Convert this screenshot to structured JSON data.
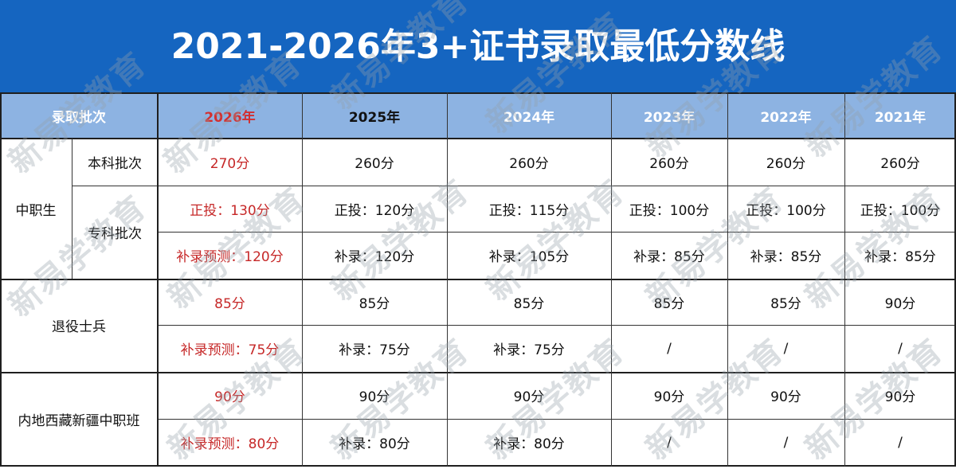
{
  "title": "2021-2026年3+证书录取最低分数线",
  "watermark": "新易学教育",
  "colors": {
    "banner": "#1565c0",
    "header": "#8db3e2",
    "highlight": "#c62828"
  },
  "table": {
    "corner": "录取批次",
    "years": [
      "2026年",
      "2025年",
      "2024年",
      "2023年",
      "2022年",
      "2021年"
    ],
    "groups": [
      {
        "label": "中职生",
        "sub": [
          "本科批次",
          "专科批次"
        ]
      },
      {
        "label": "退役士兵"
      },
      {
        "label": "内地西藏新疆中职班"
      }
    ],
    "rows": [
      [
        "270分",
        "260分",
        "260分",
        "260分",
        "260分",
        "260分"
      ],
      [
        "正投：130分",
        "正投：120分",
        "正投：115分",
        "正投：100分",
        "正投：100分",
        "正投：100分"
      ],
      [
        "补录预测：120分",
        "补录：120分",
        "补录：105分",
        "补录：85分",
        "补录：85分",
        "补录：85分"
      ],
      [
        "85分",
        "85分",
        "85分",
        "85分",
        "85分",
        "90分"
      ],
      [
        "补录预测：75分",
        "补录：75分",
        "补录：75分",
        "/",
        "/",
        "/"
      ],
      [
        "90分",
        "90分",
        "90分",
        "90分",
        "90分",
        "90分"
      ],
      [
        "补录预测：80分",
        "补录：80分",
        "补录：80分",
        "/",
        "/",
        "/"
      ]
    ]
  }
}
